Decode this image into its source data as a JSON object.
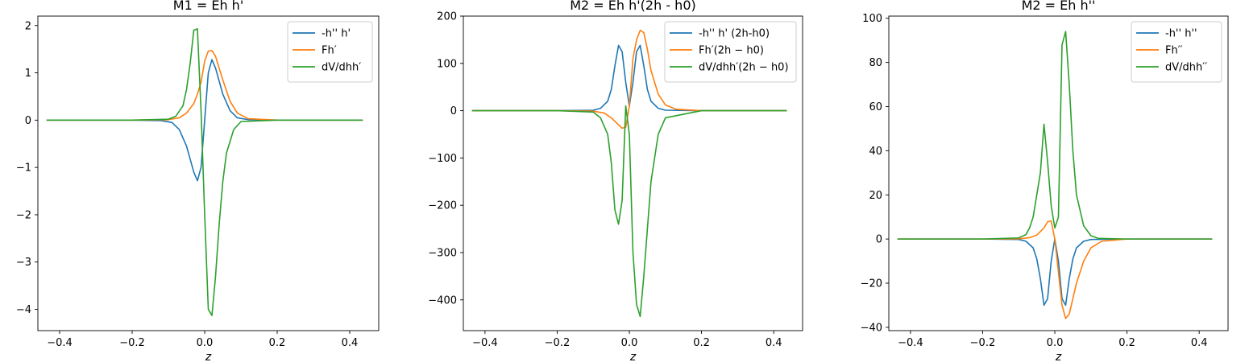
{
  "chart_data": [
    {
      "type": "line",
      "title": "M1 = Eh h'",
      "xlabel": "z",
      "ylabel": "",
      "xlim": [
        -0.46,
        0.48
      ],
      "ylim": [
        -4.45,
        2.2
      ],
      "xticks": [
        -0.4,
        -0.2,
        0.0,
        0.2,
        0.4
      ],
      "yticks": [
        -4,
        -3,
        -2,
        -1,
        0,
        1,
        2
      ],
      "xtick_labels": [
        "−0.4",
        "−0.2",
        "0.0",
        "0.2",
        "0.4"
      ],
      "ytick_labels": [
        "−4",
        "−3",
        "−2",
        "−1",
        "0",
        "1",
        "2"
      ],
      "legend_position": "top-right",
      "series": [
        {
          "name": "-h'' h'",
          "color": "#1f77b4",
          "x": [
            -0.436,
            -0.2,
            -0.12,
            -0.09,
            -0.07,
            -0.05,
            -0.03,
            -0.02,
            -0.01,
            0.0,
            0.01,
            0.02,
            0.03,
            0.05,
            0.07,
            0.09,
            0.12,
            0.2,
            0.436
          ],
          "y": [
            0,
            0,
            -0.01,
            -0.05,
            -0.2,
            -0.55,
            -1.1,
            -1.28,
            -1.0,
            0.0,
            1.0,
            1.28,
            1.1,
            0.55,
            0.2,
            0.05,
            0.01,
            0,
            0
          ]
        },
        {
          "name": "Fh′",
          "color": "#ff7f0e",
          "x": [
            -0.436,
            -0.2,
            -0.1,
            -0.07,
            -0.05,
            -0.03,
            -0.02,
            -0.01,
            0.0,
            0.01,
            0.02,
            0.03,
            0.05,
            0.07,
            0.09,
            0.12,
            0.2,
            0.436
          ],
          "y": [
            0,
            0,
            0.01,
            0.05,
            0.15,
            0.35,
            0.55,
            0.8,
            1.25,
            1.46,
            1.47,
            1.35,
            0.85,
            0.4,
            0.15,
            0.03,
            0,
            0
          ]
        },
        {
          "name": "dV/dhh′",
          "color": "#2ca02c",
          "x": [
            -0.436,
            -0.2,
            -0.1,
            -0.08,
            -0.06,
            -0.05,
            -0.04,
            -0.03,
            -0.02,
            -0.01,
            0.0,
            0.01,
            0.02,
            0.03,
            0.04,
            0.05,
            0.06,
            0.08,
            0.1,
            0.2,
            0.436
          ],
          "y": [
            0,
            0,
            0.02,
            0.08,
            0.3,
            0.65,
            1.2,
            1.9,
            1.93,
            0.2,
            -2.0,
            -4.0,
            -4.13,
            -3.3,
            -2.2,
            -1.3,
            -0.7,
            -0.2,
            -0.03,
            0,
            0
          ]
        }
      ]
    },
    {
      "type": "line",
      "title": "M2 = Eh h'(2h - h0)",
      "xlabel": "z",
      "ylabel": "",
      "xlim": [
        -0.46,
        0.48
      ],
      "ylim": [
        -465,
        200
      ],
      "xticks": [
        -0.4,
        -0.2,
        0.0,
        0.2,
        0.4
      ],
      "yticks": [
        -400,
        -300,
        -200,
        -100,
        0,
        100,
        200
      ],
      "xtick_labels": [
        "−0.4",
        "−0.2",
        "0.0",
        "0.2",
        "0.4"
      ],
      "ytick_labels": [
        "−400",
        "−300",
        "−200",
        "−100",
        "0",
        "100",
        "200"
      ],
      "legend_position": "top-right",
      "series": [
        {
          "name": "-h'' h' (2h-h0)",
          "color": "#1f77b4",
          "x": [
            -0.436,
            -0.2,
            -0.1,
            -0.08,
            -0.06,
            -0.05,
            -0.04,
            -0.03,
            -0.02,
            -0.01,
            0.0,
            0.01,
            0.02,
            0.03,
            0.04,
            0.05,
            0.06,
            0.08,
            0.1,
            0.2,
            0.436
          ],
          "y": [
            0,
            0,
            1,
            5,
            20,
            45,
            95,
            138,
            125,
            60,
            10,
            60,
            125,
            138,
            95,
            45,
            20,
            5,
            1,
            0,
            0
          ]
        },
        {
          "name": "Fh′(2h − h0)",
          "color": "#ff7f0e",
          "x": [
            -0.436,
            -0.2,
            -0.1,
            -0.07,
            -0.05,
            -0.03,
            -0.02,
            -0.01,
            0.0,
            0.01,
            0.02,
            0.03,
            0.04,
            0.05,
            0.06,
            0.08,
            0.1,
            0.13,
            0.2,
            0.436
          ],
          "y": [
            0,
            0,
            -1,
            -5,
            -15,
            -30,
            -37,
            -35,
            10,
            110,
            150,
            170,
            165,
            130,
            85,
            35,
            12,
            3,
            0,
            0
          ]
        },
        {
          "name": "dV/dhh′(2h − h0)",
          "color": "#2ca02c",
          "x": [
            -0.436,
            -0.2,
            -0.1,
            -0.08,
            -0.06,
            -0.05,
            -0.04,
            -0.03,
            -0.02,
            -0.01,
            0.0,
            0.01,
            0.02,
            0.03,
            0.04,
            0.05,
            0.06,
            0.08,
            0.1,
            0.2,
            0.436
          ],
          "y": [
            0,
            0,
            -3,
            -15,
            -50,
            -110,
            -210,
            -240,
            -190,
            10,
            -50,
            -300,
            -410,
            -435,
            -350,
            -250,
            -150,
            -50,
            -15,
            0,
            0
          ]
        }
      ]
    },
    {
      "type": "line",
      "title": "M2 = Eh h''",
      "xlabel": "z",
      "ylabel": "",
      "xlim": [
        -0.46,
        0.48
      ],
      "ylim": [
        -41.5,
        101
      ],
      "xticks": [
        -0.4,
        -0.2,
        0.0,
        0.2,
        0.4
      ],
      "yticks": [
        -40,
        -20,
        0,
        20,
        40,
        60,
        80,
        100
      ],
      "xtick_labels": [
        "−0.4",
        "−0.2",
        "0.0",
        "0.2",
        "0.4"
      ],
      "ytick_labels": [
        "−40",
        "−20",
        "0",
        "20",
        "40",
        "60",
        "80",
        "100"
      ],
      "legend_position": "top-right",
      "series": [
        {
          "name": "-h'' h''",
          "color": "#1f77b4",
          "x": [
            -0.436,
            -0.2,
            -0.1,
            -0.08,
            -0.06,
            -0.05,
            -0.04,
            -0.03,
            -0.02,
            -0.01,
            0.0,
            0.01,
            0.02,
            0.03,
            0.04,
            0.05,
            0.06,
            0.08,
            0.1,
            0.2,
            0.436
          ],
          "y": [
            0,
            0,
            -0.2,
            -1,
            -4,
            -9,
            -18,
            -30,
            -27,
            -10,
            0,
            -10,
            -27,
            -30,
            -18,
            -9,
            -4,
            -1,
            -0.2,
            0,
            0
          ]
        },
        {
          "name": "Fh′′",
          "color": "#ff7f0e",
          "x": [
            -0.436,
            -0.2,
            -0.1,
            -0.07,
            -0.05,
            -0.03,
            -0.02,
            -0.01,
            0.0,
            0.01,
            0.02,
            0.03,
            0.04,
            0.05,
            0.06,
            0.08,
            0.1,
            0.13,
            0.2,
            0.436
          ],
          "y": [
            0,
            0,
            0.1,
            0.6,
            1.8,
            5,
            7.8,
            8.2,
            0,
            -15,
            -30,
            -36,
            -34,
            -27,
            -20,
            -10,
            -4,
            -1,
            0,
            0
          ]
        },
        {
          "name": "dV/dhh′′",
          "color": "#2ca02c",
          "x": [
            -0.436,
            -0.2,
            -0.1,
            -0.08,
            -0.07,
            -0.06,
            -0.05,
            -0.04,
            -0.03,
            -0.02,
            -0.01,
            0.0,
            0.01,
            0.02,
            0.03,
            0.04,
            0.05,
            0.06,
            0.08,
            0.1,
            0.12,
            0.2,
            0.436
          ],
          "y": [
            0,
            0,
            0.5,
            2,
            5,
            10,
            20,
            30,
            52,
            35,
            15,
            5,
            10,
            88,
            94,
            70,
            40,
            20,
            6,
            1.5,
            0.3,
            0,
            0
          ]
        }
      ]
    }
  ]
}
